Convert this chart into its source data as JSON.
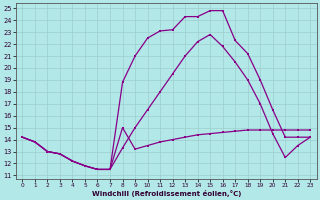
{
  "bg_color": "#b2e8e8",
  "grid_color": "#9ecece",
  "line_color": "#880088",
  "xlim_min": -0.5,
  "xlim_max": 23.5,
  "ylim_min": 10.7,
  "ylim_max": 25.4,
  "xticks": [
    0,
    1,
    2,
    3,
    4,
    5,
    6,
    7,
    8,
    9,
    10,
    11,
    12,
    13,
    14,
    15,
    16,
    17,
    18,
    19,
    20,
    21,
    22,
    23
  ],
  "yticks": [
    11,
    12,
    13,
    14,
    15,
    16,
    17,
    18,
    19,
    20,
    21,
    22,
    23,
    24,
    25
  ],
  "xlabel": "Windchill (Refroidissement éolien,°C)",
  "curve1_x": [
    0,
    1,
    2,
    3,
    4,
    5,
    6,
    7,
    8,
    9,
    10,
    11,
    12,
    13,
    14,
    15,
    16,
    17,
    18,
    19,
    20,
    21,
    22,
    23
  ],
  "curve1_y": [
    14.2,
    13.8,
    13.0,
    12.8,
    12.2,
    11.8,
    11.5,
    11.5,
    18.8,
    21.0,
    22.5,
    23.1,
    23.2,
    24.3,
    24.3,
    24.8,
    24.8,
    22.3,
    21.2,
    19.0,
    16.5,
    14.2,
    14.2,
    14.2
  ],
  "curve2_x": [
    0,
    1,
    2,
    3,
    4,
    5,
    6,
    7,
    8,
    9,
    10,
    11,
    12,
    13,
    14,
    15,
    16,
    17,
    18,
    19,
    20,
    21,
    22,
    23
  ],
  "curve2_y": [
    14.2,
    13.8,
    13.0,
    12.8,
    12.2,
    11.8,
    11.5,
    11.5,
    15.0,
    13.2,
    13.5,
    13.8,
    14.0,
    14.2,
    14.4,
    14.5,
    14.6,
    14.7,
    14.8,
    14.8,
    14.8,
    14.8,
    14.8,
    14.8
  ],
  "curve3_x": [
    0,
    1,
    2,
    3,
    4,
    5,
    6,
    7,
    8,
    9,
    10,
    11,
    12,
    13,
    14,
    15,
    16,
    17,
    18,
    19,
    20,
    21,
    22,
    23
  ],
  "curve3_y": [
    14.2,
    13.8,
    13.0,
    12.8,
    12.2,
    11.8,
    11.5,
    11.5,
    13.3,
    15.0,
    16.5,
    18.0,
    19.5,
    21.0,
    22.2,
    22.8,
    21.8,
    20.5,
    19.0,
    17.0,
    14.5,
    12.5,
    13.5,
    14.2
  ]
}
